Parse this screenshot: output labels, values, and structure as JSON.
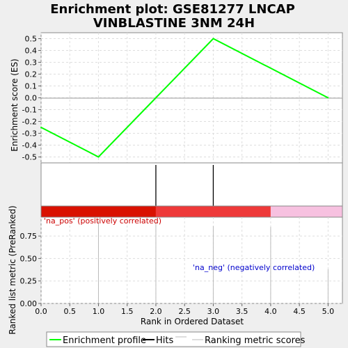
{
  "chart_data": {
    "type": "line",
    "title_line1": "Enrichment plot: GSE81277 LNCAP",
    "title_line2": "VINBLASTINE 3NM 24H",
    "xlabel": "Rank in Ordered Dataset",
    "xlim": [
      0,
      5.25
    ],
    "x_ticks": [
      "0.0",
      "0.5",
      "1.0",
      "1.5",
      "2.0",
      "2.5",
      "3.0",
      "3.5",
      "4.0",
      "4.5",
      "5.0"
    ],
    "es_panel": {
      "ylabel": "Enrichment score (ES)",
      "ylim": [
        -0.55,
        0.55
      ],
      "y_ticks": [
        "0.5",
        "0.4",
        "0.3",
        "0.2",
        "0.1",
        "0.0",
        "-0.1",
        "-0.2",
        "-0.3",
        "-0.4",
        "-0.5"
      ],
      "series": [
        {
          "name": "Enrichment profile",
          "color": "#00ff00",
          "x": [
            0,
            1,
            2,
            3,
            5
          ],
          "y": [
            -0.25,
            -0.5,
            0.0,
            0.5,
            0.0
          ]
        }
      ]
    },
    "hits": {
      "x": [
        2,
        3
      ],
      "color": "#000000"
    },
    "color_bar": [
      {
        "from": 0,
        "to": 2,
        "color": "#d91100"
      },
      {
        "from": 2,
        "to": 4,
        "color": "#ee3939"
      },
      {
        "from": 4,
        "to": 5.25,
        "color": "#f7c1e0"
      }
    ],
    "rank_panel": {
      "ylabel": "Ranked list metric (PreRanked)",
      "ylim": [
        0,
        0.96
      ],
      "y_ticks": [
        "0.75",
        "0.50",
        "0.25",
        "0.00"
      ],
      "bars": {
        "x": [
          1,
          2,
          3,
          4,
          5
        ],
        "y": [
          0.92,
          0.9,
          0.86,
          0.85,
          0.38
        ],
        "color": "#bbbbbb"
      },
      "label_pos": "'na_pos' (positively correlated)",
      "label_neg": "'na_neg' (negatively correlated)"
    },
    "legend": {
      "placement": "bottom",
      "items": [
        {
          "label": "Enrichment profile",
          "color": "#00ff00"
        },
        {
          "label": "Hits",
          "color": "#000000"
        },
        {
          "label": "Ranking metric scores",
          "color": "#bbbbbb"
        }
      ]
    },
    "grid": true
  }
}
